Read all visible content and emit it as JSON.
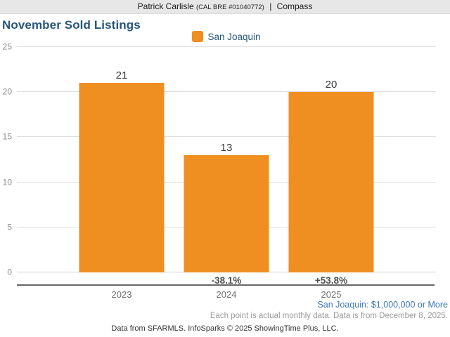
{
  "header": {
    "agent_name": "Patrick Carlisle",
    "license": "(CAL BRE #01040772)",
    "separator": "|",
    "brokerage": "Compass"
  },
  "chart_data": {
    "type": "bar",
    "title": "November Sold Listings",
    "categories": [
      "2023",
      "2024",
      "2025"
    ],
    "series": [
      {
        "name": "San Joaquin",
        "values": [
          21,
          13,
          20
        ],
        "color": "#EF8F22"
      }
    ],
    "pct_change_labels": [
      null,
      "-38.1%",
      "+53.8%"
    ],
    "ylim": [
      0,
      25
    ],
    "yticks": [
      0,
      5,
      10,
      15,
      20,
      25
    ],
    "grid": true,
    "legend_position": "top-center",
    "xlabel": "",
    "ylabel": ""
  },
  "footnotes": {
    "series_filter_note": "San Joaquin: $1,000,000 or More",
    "data_note": "Each point is actual monthly data. Data is from December 8, 2025.",
    "attribution": "Data from SFARMLS. InfoSparks © 2025 ShowingTime Plus, LLC."
  },
  "colors": {
    "bar_orange": "#EF8F22",
    "title_navy": "#25567B",
    "note_blue": "#3E79B5",
    "header_bg": "#E7E7E7"
  }
}
